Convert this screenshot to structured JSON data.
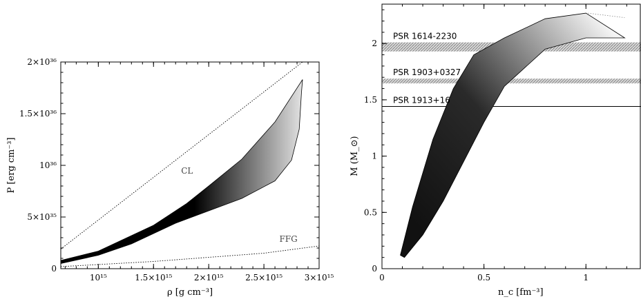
{
  "chart_data": [
    {
      "type": "area",
      "xlabel": "ρ [g cm⁻³]",
      "ylabel": "P [erg cm⁻³]",
      "xlim": [
        660000000000000.0,
        3000000000000000.0
      ],
      "ylim": [
        0,
        2e+36
      ],
      "xtick_labels": [
        {
          "v": 1000000000000000.0,
          "label": "10¹⁵"
        },
        {
          "v": 1500000000000000.0,
          "label": "1.5×10¹⁵"
        },
        {
          "v": 2000000000000000.0,
          "label": "2×10¹⁵"
        },
        {
          "v": 2500000000000000.0,
          "label": "2.5×10¹⁵"
        },
        {
          "v": 3000000000000000.0,
          "label": "3×10¹⁵"
        }
      ],
      "ytick_labels": [
        {
          "v": 0,
          "label": "0"
        },
        {
          "v": 5e+35,
          "label": "5×10³⁵"
        },
        {
          "v": 1e+36,
          "label": "10³⁶"
        },
        {
          "v": 1.5e+36,
          "label": "1.5×10³⁶"
        },
        {
          "v": 2e+36,
          "label": "2×10³⁶"
        }
      ],
      "band_upper": [
        [
          660000000000000.0,
          8e+34
        ],
        [
          1000000000000000.0,
          1.7e+35
        ],
        [
          1500000000000000.0,
          4.2e+35
        ],
        [
          1800000000000000.0,
          6.3e+35
        ],
        [
          2000000000000000.0,
          8e+35
        ],
        [
          2300000000000000.0,
          1.06e+36
        ],
        [
          2600000000000000.0,
          1.42e+36
        ],
        [
          2850000000000000.0,
          1.83e+36
        ]
      ],
      "band_lower": [
        [
          660000000000000.0,
          5e+34
        ],
        [
          1000000000000000.0,
          1.3e+35
        ],
        [
          1300000000000000.0,
          2.4e+35
        ],
        [
          1700000000000000.0,
          4.4e+35
        ],
        [
          2000000000000000.0,
          5.6e+35
        ],
        [
          2300000000000000.0,
          6.8e+35
        ],
        [
          2600000000000000.0,
          8.5e+35
        ],
        [
          2750000000000000.0,
          1.05e+36
        ],
        [
          2820000000000000.0,
          1.35e+36
        ],
        [
          2840000000000000.0,
          1.7e+36
        ]
      ],
      "lines": [
        {
          "name": "CL",
          "points": [
            [
              660000000000000.0,
              1.9e+35
            ],
            [
              2850000000000000.0,
              2e+36
            ]
          ]
        },
        {
          "name": "FFG",
          "points": [
            [
              660000000000000.0,
              2e+34
            ],
            [
              1500000000000000.0,
              7e+34
            ],
            [
              2500000000000000.0,
              1.5e+35
            ],
            [
              3000000000000000.0,
              2.2e+35
            ]
          ]
        }
      ],
      "annotations": [
        {
          "text": "CL",
          "x": 1750000000000000.0,
          "y": 9.2e+35
        },
        {
          "text": "FFG",
          "x": 2640000000000000.0,
          "y": 2.6e+35
        }
      ]
    },
    {
      "type": "area",
      "xlabel": "n_c [fm⁻³]",
      "ylabel": "M (M_⊙)",
      "xlim": [
        0,
        1.27
      ],
      "ylim": [
        0,
        2.35
      ],
      "xtick_labels": [
        {
          "v": 0,
          "label": "0"
        },
        {
          "v": 0.5,
          "label": "0.5"
        },
        {
          "v": 1,
          "label": "1"
        }
      ],
      "ytick_labels": [
        {
          "v": 0,
          "label": "0"
        },
        {
          "v": 0.5,
          "label": "0.5"
        },
        {
          "v": 1,
          "label": "1"
        },
        {
          "v": 1.5,
          "label": "1.5"
        },
        {
          "v": 2,
          "label": "2"
        }
      ],
      "band_upper": [
        [
          0.09,
          0.12
        ],
        [
          0.15,
          0.55
        ],
        [
          0.25,
          1.15
        ],
        [
          0.35,
          1.6
        ],
        [
          0.45,
          1.9
        ],
        [
          0.6,
          2.05
        ],
        [
          0.8,
          2.22
        ],
        [
          1.0,
          2.27
        ]
      ],
      "band_lower": [
        [
          0.11,
          0.1
        ],
        [
          0.2,
          0.3
        ],
        [
          0.3,
          0.6
        ],
        [
          0.4,
          0.95
        ],
        [
          0.5,
          1.3
        ],
        [
          0.6,
          1.62
        ],
        [
          0.8,
          1.95
        ],
        [
          1.0,
          2.05
        ],
        [
          1.19,
          2.05
        ]
      ],
      "band_extension_dotted": [
        [
          1.01,
          2.27
        ],
        [
          1.19,
          2.23
        ]
      ],
      "observations": [
        {
          "name": "PSR 1614-2230",
          "mass": 1.97,
          "err": 0.04
        },
        {
          "name": "PSR 1903+0327",
          "mass": 1.667,
          "err": 0.021
        },
        {
          "name": "PSR 1913+16",
          "mass": 1.4414,
          "err": 0.0002
        }
      ]
    }
  ]
}
